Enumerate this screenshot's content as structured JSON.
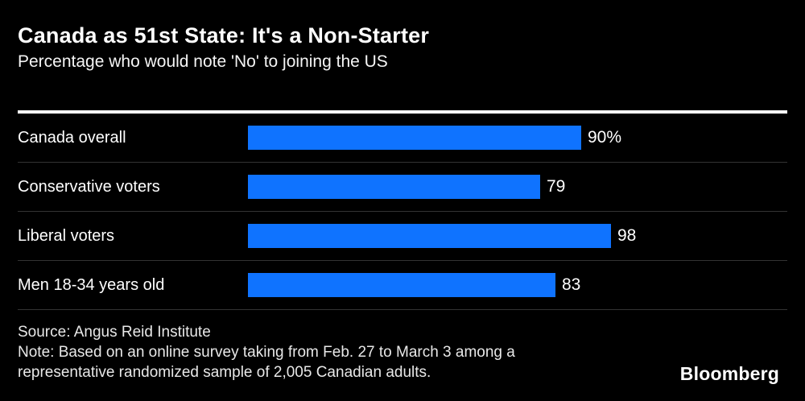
{
  "chart_data": {
    "type": "bar",
    "orientation": "horizontal",
    "title": "Canada as 51st State: It's a Non-Starter",
    "subtitle": "Percentage who would note 'No' to joining the US",
    "categories": [
      "Canada overall",
      "Conservative voters",
      "Liberal voters",
      "Men 18-34 years old"
    ],
    "values": [
      90,
      79,
      98,
      83
    ],
    "value_labels": [
      "90%",
      "79",
      "98",
      "83"
    ],
    "xlim": [
      0,
      100
    ],
    "grid": false,
    "legend": false,
    "bar_color": "#0f73ff"
  },
  "footer": {
    "source": "Source: Angus Reid Institute",
    "note": "Note: Based on an online survey taking from Feb. 27 to March 3 among a representative randomized sample of 2,005 Canadian adults.",
    "brand": "Bloomberg"
  },
  "colors": {
    "background": "#000000",
    "bar": "#0f73ff",
    "text": "#ffffff",
    "footer_text": "#e8e8e8",
    "divider": "#333333",
    "top_rule": "#ffffff"
  }
}
